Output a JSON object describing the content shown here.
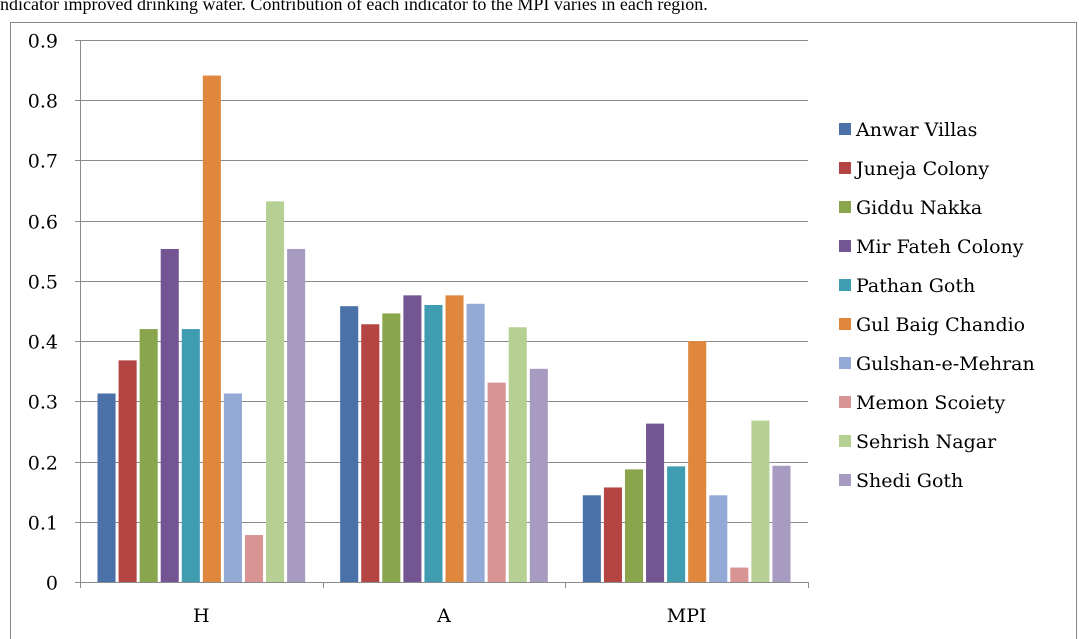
{
  "caption": "ndicator improved drinking water. Contribution of each indicator to the MPI varies in each region.",
  "chart_data": {
    "type": "bar",
    "title": "",
    "xlabel": "",
    "ylabel": "",
    "ylim": [
      0,
      0.9
    ],
    "yticks": [
      "0",
      "0.1",
      "0.2",
      "0.3",
      "0.4",
      "0.5",
      "0.6",
      "0.7",
      "0.8",
      "0.9"
    ],
    "grid": true,
    "legend_position": "right",
    "categories": [
      "H",
      "A",
      "MPI"
    ],
    "series": [
      {
        "name": "Anwar Villas",
        "color": "#4a72a8",
        "values": [
          0.313,
          0.458,
          0.144
        ]
      },
      {
        "name": "Juneja Colony",
        "color": "#b54543",
        "values": [
          0.368,
          0.428,
          0.157
        ]
      },
      {
        "name": "Giddu Nakka",
        "color": "#89a64c",
        "values": [
          0.42,
          0.446,
          0.187
        ]
      },
      {
        "name": "Mir Fateh Colony",
        "color": "#735593",
        "values": [
          0.553,
          0.476,
          0.263
        ]
      },
      {
        "name": "Pathan Goth",
        "color": "#3f9cb1",
        "values": [
          0.42,
          0.46,
          0.192
        ]
      },
      {
        "name": "Gul Baig Chandio",
        "color": "#e0873e",
        "values": [
          0.841,
          0.476,
          0.4
        ]
      },
      {
        "name": "Gulshan-e-Mehran",
        "color": "#93a9d6",
        "values": [
          0.313,
          0.462,
          0.144
        ]
      },
      {
        "name": "Memon Scoiety",
        "color": "#d89393",
        "values": [
          0.078,
          0.331,
          0.024
        ]
      },
      {
        "name": "Sehrish Nagar",
        "color": "#b6cf93",
        "values": [
          0.632,
          0.423,
          0.268
        ]
      },
      {
        "name": "Shedi Goth",
        "color": "#a79bc2",
        "values": [
          0.553,
          0.354,
          0.193
        ]
      }
    ]
  }
}
